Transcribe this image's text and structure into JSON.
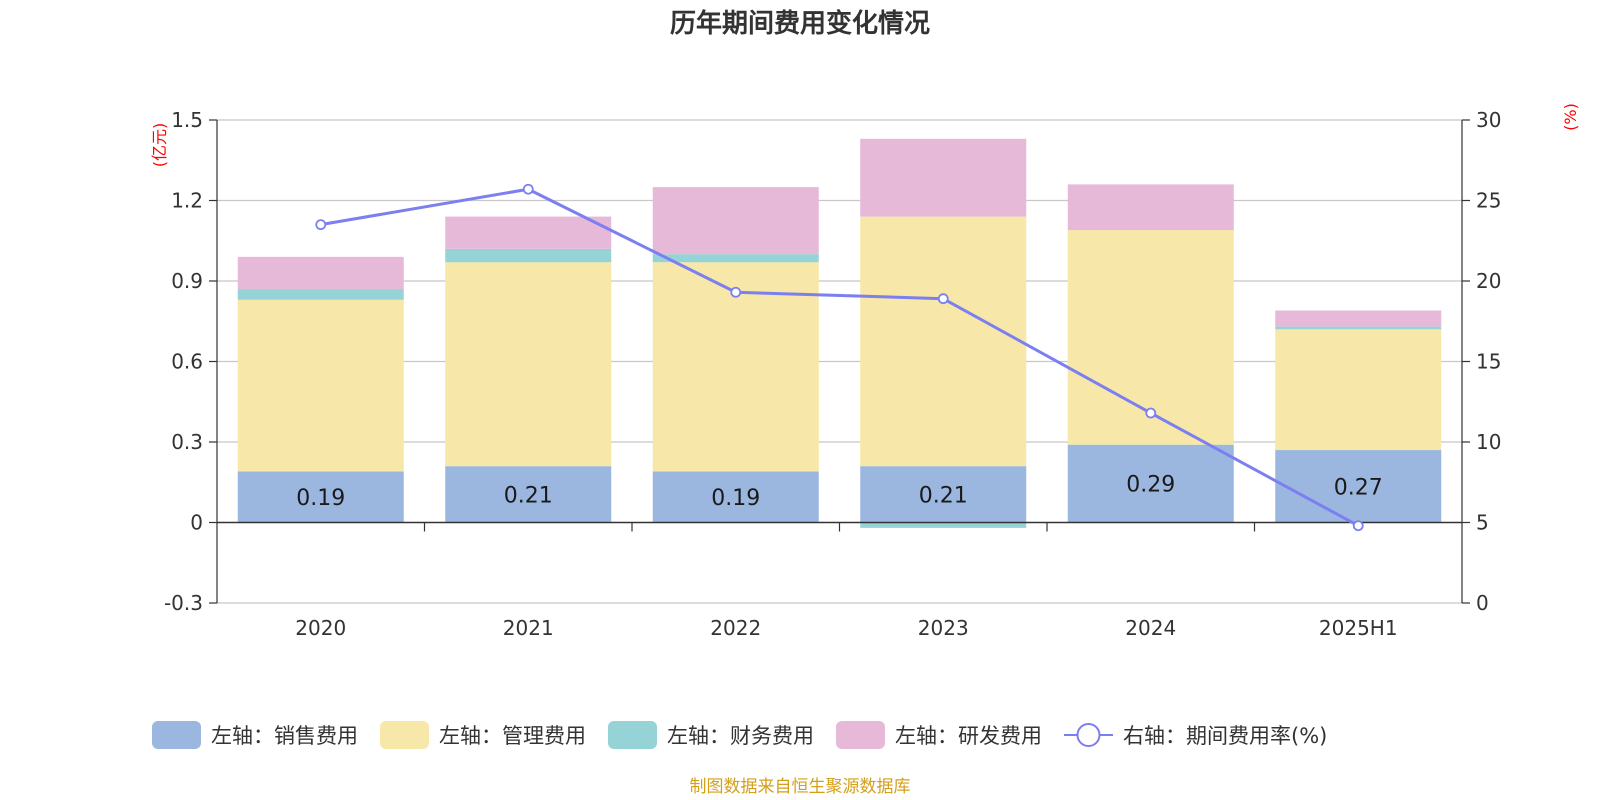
{
  "chart_data": {
    "type": "bar",
    "title": "历年期间费用变化情况",
    "categories": [
      "2020",
      "2021",
      "2022",
      "2023",
      "2024",
      "2025H1"
    ],
    "left_axis": {
      "unit": "(亿元)",
      "ylim": [
        -0.3,
        1.5
      ],
      "ticks": [
        -0.3,
        0,
        0.3,
        0.6,
        0.9,
        1.2,
        1.5
      ],
      "tick_labels": [
        "-0.3",
        "0",
        "0.3",
        "0.6",
        "0.9",
        "1.2",
        "1.5"
      ]
    },
    "right_axis": {
      "unit": "(%)",
      "ylim": [
        0,
        30
      ],
      "ticks": [
        0,
        5,
        10,
        15,
        20,
        25,
        30
      ],
      "tick_labels": [
        "0",
        "5",
        "10",
        "15",
        "20",
        "25",
        "30"
      ]
    },
    "series": [
      {
        "name": "左轴：销售费用",
        "kind": "bar",
        "axis": "left",
        "color": "#9bb7e0",
        "values": [
          0.19,
          0.21,
          0.19,
          0.21,
          0.29,
          0.27
        ],
        "labels": [
          "0.19",
          "0.21",
          "0.19",
          "0.21",
          "0.29",
          "0.27"
        ]
      },
      {
        "name": "左轴：管理费用",
        "kind": "bar",
        "axis": "left",
        "color": "#f7e7a8",
        "values": [
          0.64,
          0.76,
          0.78,
          0.93,
          0.8,
          0.45
        ]
      },
      {
        "name": "左轴：财务费用",
        "kind": "bar",
        "axis": "left",
        "color": "#96d3d6",
        "values": [
          0.04,
          0.05,
          0.03,
          -0.02,
          0.0,
          0.01
        ]
      },
      {
        "name": "左轴：研发费用",
        "kind": "bar",
        "axis": "left",
        "color": "#e7b9d9",
        "values": [
          0.12,
          0.12,
          0.25,
          0.29,
          0.17,
          0.06
        ]
      },
      {
        "name": "右轴：期间费用率(%)",
        "kind": "line",
        "axis": "right",
        "color": "#7b7ff0",
        "values": [
          23.5,
          25.7,
          19.3,
          18.9,
          11.8,
          4.8
        ]
      }
    ],
    "legend_position": "bottom",
    "grid": true
  },
  "source": "制图数据来自恒生聚源数据库"
}
